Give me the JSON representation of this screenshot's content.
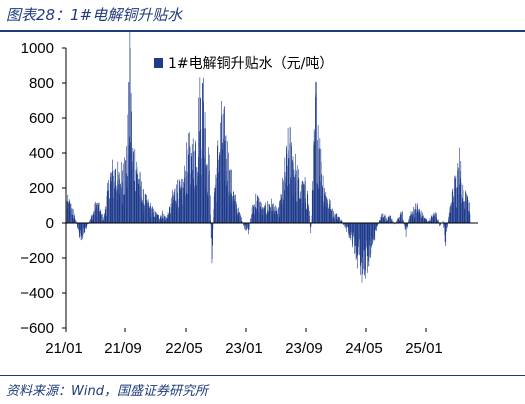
{
  "figure_title": "图表28：1#电解铜升贴水",
  "source_note": "资料来源：Wind，国盛证券研究所",
  "chart_data": {
    "type": "bar",
    "series": [
      {
        "name": "1#电解铜升贴水（元/吨）",
        "color": "#1f3b8c",
        "start": "2021-01-04",
        "end": "2025-06-27",
        "anchors": [
          [
            "2021-01-04",
            130
          ],
          [
            "2021-01-20",
            100
          ],
          [
            "2021-02-05",
            40
          ],
          [
            "2021-02-20",
            -60
          ],
          [
            "2021-03-05",
            -90
          ],
          [
            "2021-03-20",
            -40
          ],
          [
            "2021-04-05",
            10
          ],
          [
            "2021-04-20",
            60
          ],
          [
            "2021-05-05",
            120
          ],
          [
            "2021-05-20",
            70
          ],
          [
            "2021-06-01",
            20
          ],
          [
            "2021-06-15",
            150
          ],
          [
            "2021-07-01",
            290
          ],
          [
            "2021-07-20",
            310
          ],
          [
            "2021-08-05",
            250
          ],
          [
            "2021-08-20",
            340
          ],
          [
            "2021-09-05",
            360
          ],
          [
            "2021-09-17",
            1000
          ],
          [
            "2021-09-25",
            420
          ],
          [
            "2021-10-10",
            380
          ],
          [
            "2021-10-25",
            250
          ],
          [
            "2021-11-10",
            150
          ],
          [
            "2021-11-25",
            120
          ],
          [
            "2021-12-10",
            90
          ],
          [
            "2021-12-25",
            60
          ],
          [
            "2022-01-10",
            40
          ],
          [
            "2022-01-25",
            60
          ],
          [
            "2022-02-10",
            30
          ],
          [
            "2022-02-25",
            80
          ],
          [
            "2022-03-10",
            160
          ],
          [
            "2022-03-25",
            220
          ],
          [
            "2022-04-10",
            180
          ],
          [
            "2022-04-25",
            260
          ],
          [
            "2022-05-10",
            420
          ],
          [
            "2022-05-25",
            380
          ],
          [
            "2022-06-10",
            470
          ],
          [
            "2022-06-25",
            660
          ],
          [
            "2022-07-08",
            800
          ],
          [
            "2022-07-20",
            540
          ],
          [
            "2022-08-05",
            300
          ],
          [
            "2022-08-15",
            -230
          ],
          [
            "2022-08-25",
            200
          ],
          [
            "2022-09-10",
            430
          ],
          [
            "2022-09-25",
            570
          ],
          [
            "2022-10-10",
            500
          ],
          [
            "2022-10-25",
            300
          ],
          [
            "2022-11-10",
            180
          ],
          [
            "2022-11-25",
            90
          ],
          [
            "2022-12-10",
            40
          ],
          [
            "2022-12-25",
            -30
          ],
          [
            "2023-01-10",
            -60
          ],
          [
            "2023-01-25",
            80
          ],
          [
            "2023-02-10",
            150
          ],
          [
            "2023-02-25",
            120
          ],
          [
            "2023-03-10",
            70
          ],
          [
            "2023-03-25",
            100
          ],
          [
            "2023-04-10",
            120
          ],
          [
            "2023-04-25",
            90
          ],
          [
            "2023-05-10",
            60
          ],
          [
            "2023-05-25",
            160
          ],
          [
            "2023-06-10",
            330
          ],
          [
            "2023-06-25",
            470
          ],
          [
            "2023-07-10",
            380
          ],
          [
            "2023-07-25",
            300
          ],
          [
            "2023-08-10",
            180
          ],
          [
            "2023-08-25",
            220
          ],
          [
            "2023-09-10",
            150
          ],
          [
            "2023-09-20",
            -60
          ],
          [
            "2023-10-01",
            320
          ],
          [
            "2023-10-10",
            720
          ],
          [
            "2023-10-20",
            560
          ],
          [
            "2023-11-01",
            350
          ],
          [
            "2023-11-15",
            200
          ],
          [
            "2023-12-01",
            130
          ],
          [
            "2023-12-20",
            60
          ],
          [
            "2024-01-10",
            40
          ],
          [
            "2024-01-25",
            10
          ],
          [
            "2024-02-10",
            -40
          ],
          [
            "2024-02-25",
            -80
          ],
          [
            "2024-03-10",
            -120
          ],
          [
            "2024-03-25",
            -200
          ],
          [
            "2024-04-10",
            -250
          ],
          [
            "2024-04-25",
            -300
          ],
          [
            "2024-05-10",
            -220
          ],
          [
            "2024-05-25",
            -130
          ],
          [
            "2024-06-10",
            -60
          ],
          [
            "2024-06-25",
            30
          ],
          [
            "2024-07-10",
            60
          ],
          [
            "2024-07-25",
            20
          ],
          [
            "2024-08-10",
            40
          ],
          [
            "2024-08-25",
            -10
          ],
          [
            "2024-09-10",
            30
          ],
          [
            "2024-09-25",
            60
          ],
          [
            "2024-10-10",
            -70
          ],
          [
            "2024-10-25",
            40
          ],
          [
            "2024-11-10",
            80
          ],
          [
            "2024-11-25",
            100
          ],
          [
            "2024-12-10",
            60
          ],
          [
            "2024-12-25",
            30
          ],
          [
            "2025-01-10",
            10
          ],
          [
            "2025-01-25",
            40
          ],
          [
            "2025-02-10",
            60
          ],
          [
            "2025-02-25",
            -20
          ],
          [
            "2025-03-10",
            10
          ],
          [
            "2025-03-20",
            -120
          ],
          [
            "2025-04-01",
            20
          ],
          [
            "2025-04-15",
            140
          ],
          [
            "2025-04-25",
            270
          ],
          [
            "2025-05-05",
            200
          ],
          [
            "2025-05-15",
            430
          ],
          [
            "2025-05-25",
            180
          ],
          [
            "2025-06-10",
            150
          ],
          [
            "2025-06-27",
            90
          ]
        ]
      }
    ],
    "xticks": [
      "21/01",
      "21/09",
      "22/05",
      "23/01",
      "23/09",
      "24/05",
      "25/01"
    ],
    "xtick_dates": [
      "2021-01-01",
      "2021-09-01",
      "2022-05-01",
      "2023-01-01",
      "2023-09-01",
      "2024-05-01",
      "2025-01-01"
    ],
    "yticks": [
      1000,
      800,
      600,
      400,
      200,
      0,
      -200,
      -400,
      -600
    ],
    "ylim": [
      -600,
      1000
    ],
    "legend_position": "top-center",
    "grid": false
  }
}
